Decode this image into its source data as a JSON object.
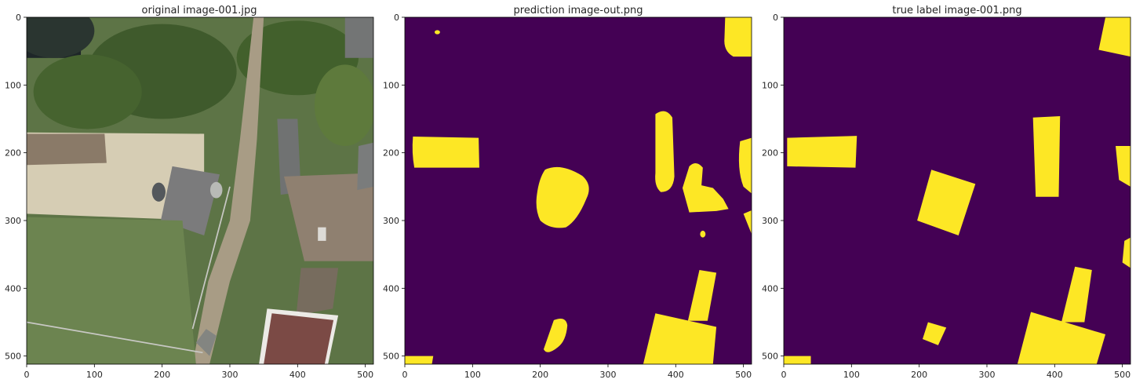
{
  "figure": {
    "panels": [
      {
        "title": "original image-001.jpg",
        "content": "aerial photograph",
        "x_ticks": [
          "0",
          "100",
          "200",
          "300",
          "400",
          "500"
        ],
        "y_ticks": [
          "0",
          "100",
          "200",
          "300",
          "400",
          "500"
        ]
      },
      {
        "title": "prediction image-out.png",
        "content": "segmentation mask",
        "x_ticks": [
          "0",
          "100",
          "200",
          "300",
          "400",
          "500"
        ],
        "y_ticks": [
          "0",
          "100",
          "200",
          "300",
          "400",
          "500"
        ]
      },
      {
        "title": "true label image-001.png",
        "content": "segmentation mask",
        "x_ticks": [
          "0",
          "100",
          "200",
          "300",
          "400",
          "500"
        ],
        "y_ticks": [
          "0",
          "100",
          "200",
          "300",
          "400",
          "500"
        ]
      }
    ],
    "colors": {
      "mask_background": "#440154",
      "mask_foreground": "#fde725",
      "photo_vegetation": "#4f6b3a",
      "photo_roof": "#6e6e70",
      "photo_red_roof": "#7a4a44",
      "photo_sand": "#d8d0bc",
      "photo_path": "#b0a48c"
    }
  }
}
